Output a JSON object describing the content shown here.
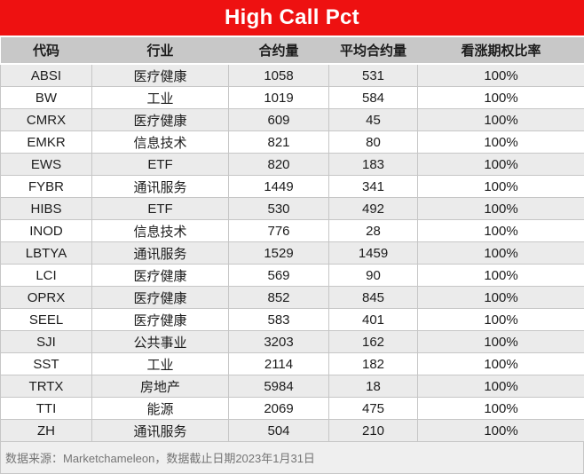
{
  "title": "High Call Pct",
  "chart_data": {
    "type": "table",
    "title": "High Call Pct",
    "columns": [
      "代码",
      "行业",
      "合约量",
      "平均合约量",
      "看涨期权比率"
    ],
    "rows": [
      [
        "ABSI",
        "医疗健康",
        1058,
        531,
        "100%"
      ],
      [
        "BW",
        "工业",
        1019,
        584,
        "100%"
      ],
      [
        "CMRX",
        "医疗健康",
        609,
        45,
        "100%"
      ],
      [
        "EMKR",
        "信息技术",
        821,
        80,
        "100%"
      ],
      [
        "EWS",
        "ETF",
        820,
        183,
        "100%"
      ],
      [
        "FYBR",
        "通讯服务",
        1449,
        341,
        "100%"
      ],
      [
        "HIBS",
        "ETF",
        530,
        492,
        "100%"
      ],
      [
        "INOD",
        "信息技术",
        776,
        28,
        "100%"
      ],
      [
        "LBTYA",
        "通讯服务",
        1529,
        1459,
        "100%"
      ],
      [
        "LCI",
        "医疗健康",
        569,
        90,
        "100%"
      ],
      [
        "OPRX",
        "医疗健康",
        852,
        845,
        "100%"
      ],
      [
        "SEEL",
        "医疗健康",
        583,
        401,
        "100%"
      ],
      [
        "SJI",
        "公共事业",
        3203,
        162,
        "100%"
      ],
      [
        "SST",
        "工业",
        2114,
        182,
        "100%"
      ],
      [
        "TRTX",
        "房地产",
        5984,
        18,
        "100%"
      ],
      [
        "TTI",
        "能源",
        2069,
        475,
        "100%"
      ],
      [
        "ZH",
        "通讯服务",
        504,
        210,
        "100%"
      ]
    ],
    "source_note": "数据来源：Marketchameleon，数据截止日期2023年1月31日",
    "layout_hints": {
      "all_call_pct_values": "100%",
      "row_banding": "odd rows gray, even rows white",
      "alignment": "all cells centered"
    }
  },
  "colors": {
    "title_bg": "#ee1111",
    "title_text": "#ffffff",
    "header_bg": "#c8c8c8",
    "row_alt_bg": "#ebebeb",
    "row_bg": "#ffffff",
    "cell_border": "#c6c6c6",
    "footer_bg": "#efefef",
    "footer_text": "#757575"
  }
}
